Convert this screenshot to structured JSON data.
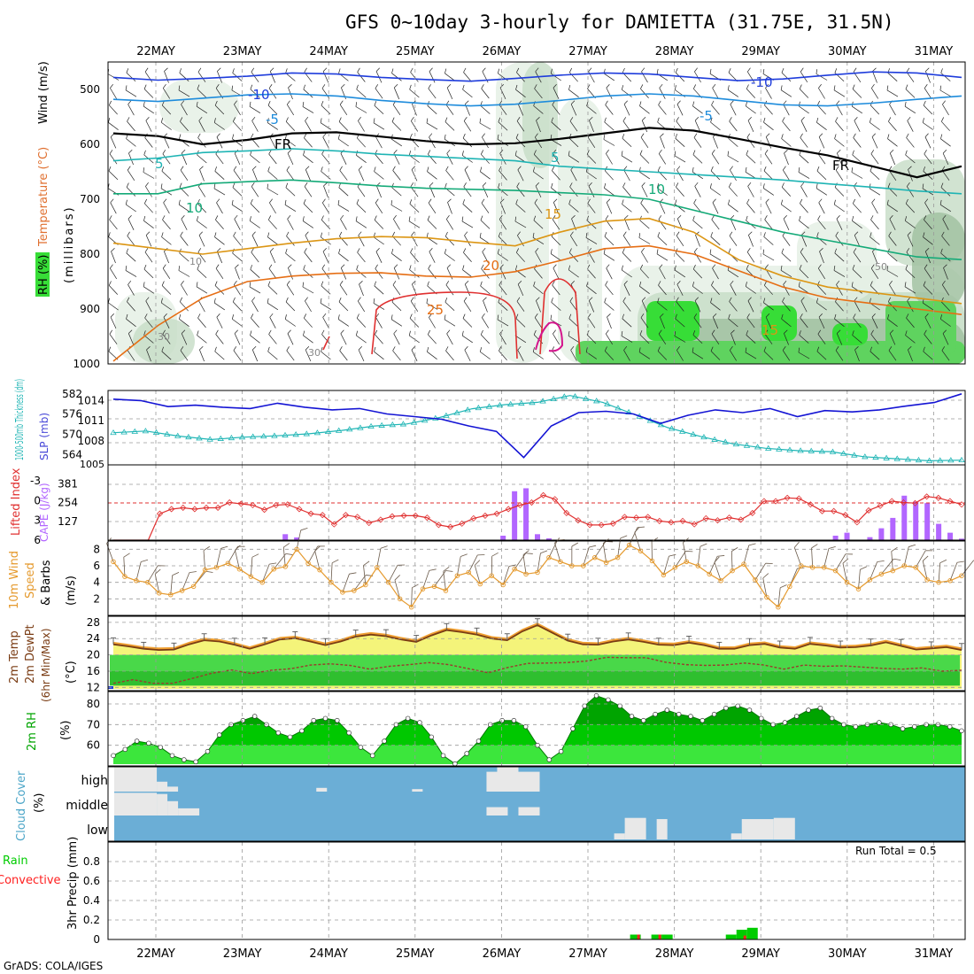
{
  "title": "GFS 0~10day 3-hourly for DAMIETTA (31.75E, 31.5N)",
  "footer": "GrADS: COLA/IGES",
  "colors": {
    "rh_light": "#e4efe4",
    "rh_mid": "#c6dcc6",
    "rh_dark": "#9fbf9f",
    "green_bright": "#37dd37",
    "green_mid": "#5fd35f",
    "slp": "#1414d4",
    "thickness": "#1fb5b5",
    "lifted": "#e03030",
    "cape": "#b266ff",
    "wind": "#e59a2e",
    "temp_fill": "#f4f47a",
    "temp_max": "#f0a032",
    "temp_line": "#7a3c14",
    "dew_g1": "#2fbf2f",
    "dew_g2": "#49d849",
    "rh2m": "#00c800",
    "rh2m_dark": "#00a400",
    "cloud_bg": "#6baed6",
    "cloud_fill": "#e8e8e8",
    "precip_total": "#00cc00",
    "precip_conv": "#ff2020"
  },
  "chart_data": [
    {
      "type": "contour",
      "panel": "upper-air",
      "title": "RH (%) / Temperature (°C) / Wind (m/s)",
      "ylabel": "(millibars)",
      "ylabel_parts": [
        "RH (%)",
        "Temperature (°C)",
        "Wind (m/s)"
      ],
      "y_ticks": [
        500,
        600,
        700,
        800,
        900,
        1000
      ],
      "ylim": [
        450,
        1000
      ],
      "x_dates": [
        "22MAY",
        "23MAY",
        "24MAY",
        "25MAY",
        "26MAY",
        "27MAY",
        "28MAY",
        "29MAY",
        "30MAY",
        "31MAY"
      ],
      "temperature_contour_labels": [
        "-10",
        "-5",
        "FR",
        "5",
        "10",
        "15",
        "20",
        "25"
      ],
      "rh_contour_labels": [
        "10",
        "30",
        "50"
      ],
      "temperature_levels": [
        {
          "label": "-10",
          "color": "#1e3cdc",
          "p": [
            478,
            483,
            480,
            476,
            470,
            472,
            478,
            482,
            485,
            480,
            474,
            470,
            472,
            478,
            484,
            481,
            474,
            468,
            470,
            478
          ]
        },
        {
          "label": "-5",
          "color": "#1e8cdc",
          "p": [
            518,
            522,
            516,
            510,
            508,
            512,
            520,
            526,
            530,
            527,
            520,
            512,
            508,
            512,
            520,
            528,
            530,
            525,
            518,
            512
          ]
        },
        {
          "label": "FR",
          "color": "#000000",
          "p": [
            580,
            585,
            600,
            592,
            580,
            578,
            586,
            594,
            600,
            598,
            590,
            580,
            570,
            575,
            590,
            606,
            620,
            640,
            660,
            640
          ]
        },
        {
          "label": "5",
          "color": "#1eb4b4",
          "p": [
            630,
            625,
            615,
            612,
            608,
            612,
            618,
            622,
            626,
            630,
            640,
            645,
            650,
            655,
            660,
            665,
            672,
            678,
            685,
            690
          ]
        },
        {
          "label": "10",
          "color": "#14aa78",
          "p": [
            690,
            690,
            672,
            668,
            665,
            670,
            676,
            680,
            682,
            684,
            688,
            692,
            700,
            720,
            740,
            760,
            775,
            790,
            805,
            810
          ]
        },
        {
          "label": "15",
          "color": "#dc9614",
          "p": [
            780,
            790,
            800,
            790,
            780,
            772,
            768,
            770,
            778,
            785,
            760,
            740,
            735,
            760,
            810,
            840,
            860,
            870,
            880,
            890
          ]
        },
        {
          "label": "20",
          "color": "#e66e14",
          "p": [
            995,
            930,
            880,
            850,
            840,
            835,
            834,
            840,
            842,
            832,
            812,
            790,
            785,
            800,
            830,
            860,
            880,
            890,
            900,
            910
          ]
        }
      ],
      "pressure_unit": "hPa"
    },
    {
      "type": "line",
      "panel": "slp-thickness",
      "ylabel_left": "1000-500mb Thickness (dm)",
      "ylabel_right": "SLP (mb)",
      "left_ticks": [
        564,
        570,
        576,
        582
      ],
      "right_ticks": [
        1008,
        1011,
        1014
      ],
      "left_extra_tick": "1005",
      "right_bottom_tick": "1008",
      "series": [
        {
          "name": "SLP",
          "unit": "mb",
          "ylim": [
            1004.4,
            1015.5
          ],
          "values": [
            1014.2,
            1014.0,
            1013.1,
            1013.3,
            1013.0,
            1012.8,
            1013.6,
            1013.0,
            1012.6,
            1012.8,
            1012.0,
            1011.6,
            1011.2,
            1010.2,
            1009.4,
            1005.5,
            1010.2,
            1012.2,
            1012.4,
            1012.0,
            1010.6,
            1011.8,
            1012.6,
            1012.2,
            1012.8,
            1011.6,
            1012.5,
            1012.3,
            1012.6,
            1013.2,
            1013.7,
            1015.0
          ]
        },
        {
          "name": "Thickness",
          "unit": "dm",
          "ylim": [
            561,
            583
          ],
          "values": [
            570.5,
            571.0,
            569.5,
            568.5,
            569.2,
            569.6,
            570.2,
            571.2,
            572.5,
            573.1,
            575.0,
            577.6,
            578.8,
            579.5,
            581.5,
            579.5,
            575.8,
            572.0,
            569.4,
            567.2,
            565.9,
            565.2,
            564.9,
            563.4,
            562.8,
            562.2,
            562.4
          ]
        }
      ]
    },
    {
      "type": "bar+line",
      "panel": "lifted-cape",
      "ylabel_left": "Lifted Index",
      "ylabel_right": "CAPE (J/kg)",
      "left_ticks": [
        -3,
        0,
        3,
        6
      ],
      "right_ticks": [
        127,
        254,
        381
      ],
      "series": [
        {
          "name": "Lifted Index",
          "ylim": [
            -5.4,
            6
          ],
          "values": [
            6.0,
            6.0,
            6.0,
            6.0,
            2.0,
            1.3,
            1.1,
            1.3,
            1.1,
            1.1,
            0.3,
            0.5,
            0.7,
            1.4,
            0.7,
            0.6,
            1.3,
            2.0,
            2.2,
            3.6,
            2.2,
            2.5,
            3.4,
            2.9,
            2.4,
            2.3,
            2.3,
            2.6,
            3.7,
            4.0,
            3.5,
            2.7,
            2.3,
            2.0,
            1.3,
            0.7,
            0.3,
            -0.8,
            -0.2,
            1.9,
            3.0,
            3.7,
            3.7,
            3.5,
            2.5,
            2.6,
            2.5,
            3.1,
            3.3,
            3.1,
            3.6,
            2.7,
            3.0,
            2.6,
            2.9,
            1.9,
            0.1,
            0.1,
            -0.4,
            -0.3,
            0.6,
            1.6,
            1.6,
            2.2,
            3.3,
            1.5,
            0.8,
            0.1,
            0.3,
            0.4,
            -0.6,
            -0.4,
            0.1,
            0.6
          ]
        },
        {
          "name": "CAPE",
          "unit": "J/kg",
          "ylim": [
            0,
            508
          ],
          "values": [
            0,
            0,
            0,
            0,
            0,
            3,
            3,
            3,
            3,
            3,
            0,
            0,
            0,
            0,
            0,
            40,
            18,
            0,
            0,
            0,
            0,
            0,
            0,
            0,
            0,
            0,
            0,
            0,
            0,
            0,
            0,
            0,
            0,
            0,
            30,
            330,
            350,
            40,
            12,
            0,
            0,
            0,
            0,
            0,
            0,
            0,
            0,
            0,
            0,
            0,
            0,
            0,
            0,
            0,
            0,
            0,
            0,
            0,
            0,
            0,
            0,
            0,
            0,
            30,
            50,
            0,
            20,
            80,
            150,
            300,
            260,
            250,
            110,
            50,
            10
          ]
        }
      ]
    },
    {
      "type": "line",
      "panel": "wind-10m",
      "ylabel": "10m Wind Speed & Barbs (m/s)",
      "ylabel_parts": [
        "10m Wind",
        "Speed",
        "& Barbs",
        "(m/s)"
      ],
      "y_ticks": [
        2,
        4,
        6,
        8
      ],
      "ylim": [
        0,
        9
      ],
      "series": [
        {
          "name": "Wind Speed",
          "unit": "m/s",
          "values": [
            6.5,
            4.7,
            4.2,
            4.0,
            2.7,
            2.5,
            3.0,
            3.5,
            5.5,
            5.8,
            6.3,
            5.6,
            4.7,
            4.0,
            5.6,
            5.9,
            8.0,
            6.3,
            5.5,
            4.0,
            2.8,
            3.0,
            3.7,
            5.8,
            4.0,
            2.0,
            1.0,
            3.2,
            3.5,
            3.0,
            4.8,
            5.2,
            3.8,
            4.8,
            3.7,
            5.6,
            5.0,
            5.2,
            7.0,
            6.5,
            6.0,
            6.0,
            7.0,
            6.4,
            7.0,
            8.5,
            7.8,
            6.6,
            4.9,
            5.8,
            6.5,
            6.0,
            5.0,
            4.2,
            5.4,
            6.2,
            4.3,
            2.2,
            1.0,
            3.5,
            6.0,
            5.8,
            5.8,
            5.4,
            4.0,
            3.2,
            4.3,
            5.0,
            5.4,
            6.0,
            5.8,
            4.3,
            4.0,
            4.2,
            4.8
          ]
        }
      ]
    },
    {
      "type": "area",
      "panel": "temperature-2m",
      "ylabel": "2m Temp / 2m DewPt (6hr Min/Max) (°C)",
      "ylabel_parts": [
        "2m Temp",
        "2m DewPt",
        "(6hr Min/Max)",
        "(°C)"
      ],
      "y_ticks": [
        12,
        16,
        20,
        24,
        28
      ],
      "ylim": [
        11.2,
        29.5
      ],
      "series": [
        {
          "name": "2m Temp",
          "unit": "°C",
          "values": [
            22.6,
            22.1,
            21.5,
            21.2,
            21.3,
            22.6,
            23.6,
            23.3,
            22.5,
            21.5,
            22.6,
            23.8,
            24.1,
            23.3,
            22.4,
            23.3,
            24.5,
            25.0,
            24.6,
            23.8,
            23.2,
            24.8,
            26.1,
            25.6,
            25.0,
            24.0,
            23.6,
            25.8,
            27.3,
            25.4,
            23.5,
            22.6,
            22.5,
            23.3,
            23.8,
            23.2,
            22.5,
            22.4,
            23.0,
            22.4,
            21.5,
            21.5,
            22.4,
            22.7,
            21.8,
            21.5,
            22.7,
            22.3,
            21.8,
            21.9,
            22.3,
            23.1,
            22.2,
            21.3,
            21.6,
            21.9,
            21.2
          ]
        },
        {
          "name": "2m DewPt",
          "unit": "°C",
          "values": [
            13.0,
            13.9,
            13.0,
            13.0,
            14.2,
            15.5,
            16.3,
            15.4,
            16.2,
            16.6,
            17.5,
            17.8,
            17.4,
            16.5,
            17.2,
            17.6,
            18.1,
            17.6,
            16.6,
            15.6,
            16.9,
            17.9,
            18.0,
            18.1,
            18.5,
            19.4,
            19.3,
            19.3,
            18.2,
            17.6,
            17.4,
            17.5,
            18.0,
            17.5,
            16.5,
            17.5,
            17.2,
            17.3,
            17.0,
            16.7,
            16.5,
            16.8,
            16.0,
            16.2
          ]
        }
      ]
    },
    {
      "type": "area",
      "panel": "rh-2m",
      "ylabel": "2m RH (%)",
      "ylabel_parts": [
        "2m RH",
        "(%)"
      ],
      "y_ticks": [
        60,
        70,
        80
      ],
      "ylim": [
        50,
        86
      ],
      "series": [
        {
          "name": "2m RH",
          "unit": "%",
          "values": [
            55,
            58,
            62,
            61,
            59,
            55,
            53,
            52,
            57,
            65,
            70,
            72,
            74,
            70,
            66,
            64,
            67,
            72,
            73,
            72,
            66,
            59,
            55,
            62,
            70,
            73,
            71,
            64,
            55,
            51,
            56,
            62,
            70,
            72,
            72,
            69,
            60,
            53,
            57,
            68,
            79,
            84,
            82,
            79,
            74,
            72,
            75,
            77,
            75,
            74,
            72,
            75,
            78,
            79,
            77,
            73,
            70,
            71,
            74,
            77,
            78,
            73,
            70,
            69,
            70,
            71,
            70,
            68,
            69,
            70,
            70,
            69,
            67
          ]
        }
      ]
    },
    {
      "type": "heatmap",
      "panel": "cloud-cover",
      "ylabel": "Cloud Cover (%)",
      "ylabel_parts": [
        "Cloud Cover",
        "(%)"
      ],
      "levels": [
        "high",
        "middle",
        "low"
      ],
      "series": [
        {
          "name": "high",
          "values": [
            [
              0,
              4,
              100
            ],
            [
              4,
              5,
              40
            ],
            [
              5,
              6,
              20
            ],
            [
              19,
              20,
              15
            ],
            [
              28,
              29,
              10
            ],
            [
              35,
              40,
              80
            ],
            [
              36,
              38,
              100
            ],
            [
              39,
              40,
              55
            ]
          ]
        },
        {
          "name": "middle",
          "values": [
            [
              0,
              4,
              95
            ],
            [
              4,
              5,
              90
            ],
            [
              5,
              6,
              60
            ],
            [
              6,
              8,
              30
            ],
            [
              35,
              37,
              35
            ],
            [
              38,
              40,
              35
            ]
          ]
        },
        {
          "name": "low",
          "values": [
            [
              47,
              48,
              25
            ],
            [
              48,
              50,
              90
            ],
            [
              51,
              52,
              85
            ],
            [
              58,
              59,
              25
            ],
            [
              59,
              62,
              85
            ],
            [
              62,
              64,
              90
            ]
          ]
        }
      ]
    },
    {
      "type": "bar",
      "panel": "precip-3hr",
      "ylabel": "3hr Precip (mm)",
      "legend_parts": [
        "Total / Rain",
        "Convective"
      ],
      "y_ticks": [
        0,
        0.2,
        0.4,
        0.6,
        0.8
      ],
      "ylim": [
        0,
        1.0
      ],
      "annotation": "Run Total = 0.5",
      "series": [
        {
          "name": "Total / Rain",
          "values": [
            [
              48.5,
              0.05
            ],
            [
              50.5,
              0.05
            ],
            [
              51.5,
              0.05
            ],
            [
              57.5,
              0.05
            ],
            [
              58.5,
              0.1
            ],
            [
              59.5,
              0.12
            ]
          ]
        },
        {
          "name": "Convective",
          "values": [
            [
              49.0,
              0.05
            ],
            [
              51.0,
              0.05
            ],
            [
              59.0,
              0.04
            ]
          ]
        }
      ]
    }
  ]
}
